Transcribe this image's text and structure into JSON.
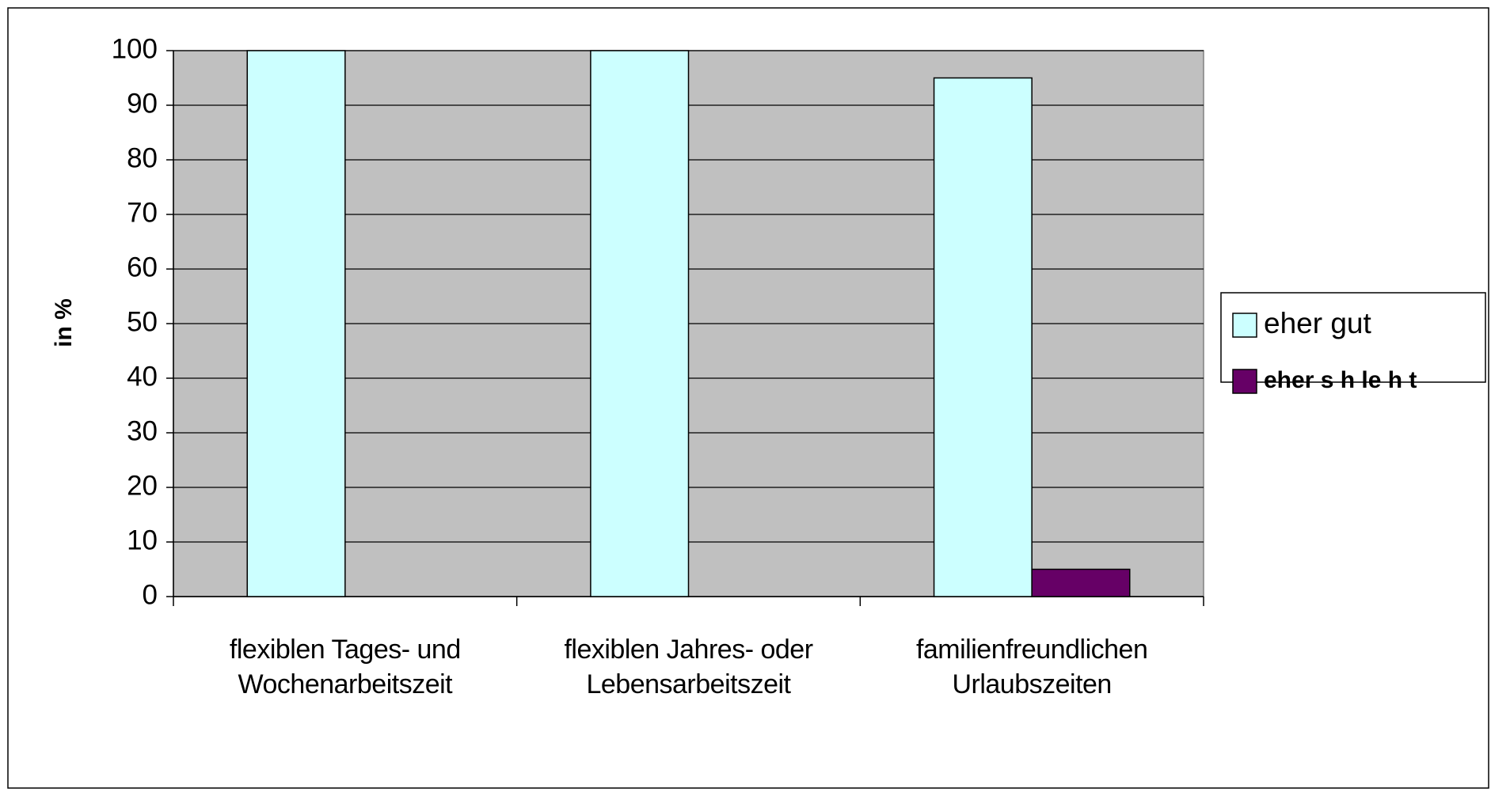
{
  "chart_data": {
    "type": "bar",
    "y_label": "in %",
    "categories": [
      "flexiblen Tages- und Wochenarbeitszeit",
      "flexiblen Jahres- oder Lebensarbeitszeit",
      "familienfreundlichen Urlaubszeiten"
    ],
    "series": [
      {
        "name": "eher gut",
        "color": "#ccffff",
        "values": [
          100,
          100,
          95
        ]
      },
      {
        "name": "eher s h le h t",
        "color": "#660066",
        "values": [
          0,
          0,
          5
        ]
      }
    ],
    "ylim": [
      0,
      100
    ],
    "yticks": [
      0,
      10,
      20,
      30,
      40,
      50,
      60,
      70,
      80,
      90,
      100
    ],
    "grid": true,
    "plot_background": "#c0c0c0",
    "legend": "right"
  }
}
